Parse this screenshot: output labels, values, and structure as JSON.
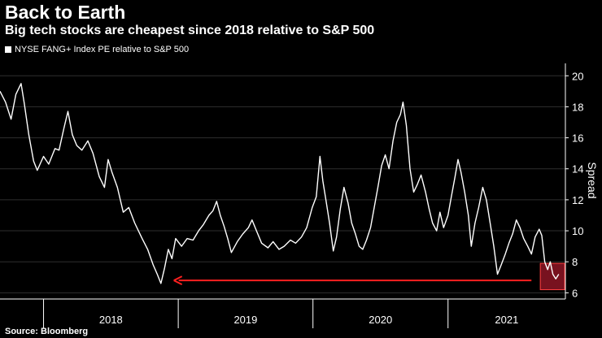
{
  "colors": {
    "background": "#000000",
    "series": "#ffffff",
    "grid": "#2e2e2e",
    "arrow": "#ff2020",
    "highlight_fill": "#a0182a",
    "highlight_stroke": "#ff4040"
  },
  "chart_data": {
    "type": "line",
    "title": "Back to Earth",
    "subtitle": "Big tech stocks are cheapest since 2018 relative to S&P 500",
    "source": "Source: Bloomberg",
    "ylabel": "Spread",
    "xlabel": "",
    "ylim": [
      5.6,
      20.8
    ],
    "y_ticks": [
      6,
      8,
      10,
      12,
      14,
      16,
      18,
      20
    ],
    "x_range": [
      "2017-09-05",
      "2021-11-15"
    ],
    "x_tick_labels": [
      "2018",
      "2019",
      "2020",
      "2021"
    ],
    "grid": "horizontal",
    "legend": "top-left",
    "series": [
      {
        "name": "NYSE FANG+ Index PE relative to S&P 500",
        "points": [
          [
            "2017-09-05",
            19.0
          ],
          [
            "2017-09-20",
            18.3
          ],
          [
            "2017-10-05",
            17.2
          ],
          [
            "2017-10-18",
            18.8
          ],
          [
            "2017-11-01",
            19.5
          ],
          [
            "2017-11-10",
            18.2
          ],
          [
            "2017-11-22",
            16.2
          ],
          [
            "2017-12-05",
            14.5
          ],
          [
            "2017-12-15",
            13.9
          ],
          [
            "2018-01-01",
            14.8
          ],
          [
            "2018-01-15",
            14.3
          ],
          [
            "2018-02-01",
            15.3
          ],
          [
            "2018-02-12",
            15.2
          ],
          [
            "2018-02-25",
            16.6
          ],
          [
            "2018-03-08",
            17.7
          ],
          [
            "2018-03-20",
            16.2
          ],
          [
            "2018-04-01",
            15.5
          ],
          [
            "2018-04-15",
            15.2
          ],
          [
            "2018-05-01",
            15.8
          ],
          [
            "2018-05-15",
            15.0
          ],
          [
            "2018-06-01",
            13.5
          ],
          [
            "2018-06-15",
            12.8
          ],
          [
            "2018-06-25",
            14.6
          ],
          [
            "2018-07-05",
            13.8
          ],
          [
            "2018-07-20",
            12.8
          ],
          [
            "2018-08-05",
            11.2
          ],
          [
            "2018-08-20",
            11.5
          ],
          [
            "2018-09-05",
            10.5
          ],
          [
            "2018-09-25",
            9.5
          ],
          [
            "2018-10-10",
            8.8
          ],
          [
            "2018-10-25",
            7.8
          ],
          [
            "2018-11-05",
            7.2
          ],
          [
            "2018-11-15",
            6.6
          ],
          [
            "2018-11-25",
            7.6
          ],
          [
            "2018-12-05",
            8.8
          ],
          [
            "2018-12-15",
            8.2
          ],
          [
            "2018-12-25",
            9.5
          ],
          [
            "2019-01-10",
            9.0
          ],
          [
            "2019-01-25",
            9.5
          ],
          [
            "2019-02-10",
            9.4
          ],
          [
            "2019-02-25",
            10.0
          ],
          [
            "2019-03-10",
            10.4
          ],
          [
            "2019-03-25",
            11.0
          ],
          [
            "2019-04-05",
            11.3
          ],
          [
            "2019-04-15",
            11.9
          ],
          [
            "2019-04-25",
            11.0
          ],
          [
            "2019-05-05",
            10.3
          ],
          [
            "2019-05-15",
            9.5
          ],
          [
            "2019-05-25",
            8.6
          ],
          [
            "2019-06-10",
            9.3
          ],
          [
            "2019-06-25",
            9.8
          ],
          [
            "2019-07-10",
            10.2
          ],
          [
            "2019-07-20",
            10.7
          ],
          [
            "2019-08-01",
            10.0
          ],
          [
            "2019-08-15",
            9.2
          ],
          [
            "2019-09-01",
            8.9
          ],
          [
            "2019-09-15",
            9.3
          ],
          [
            "2019-10-01",
            8.8
          ],
          [
            "2019-10-15",
            9.0
          ],
          [
            "2019-11-01",
            9.4
          ],
          [
            "2019-11-15",
            9.2
          ],
          [
            "2019-12-01",
            9.6
          ],
          [
            "2019-12-15",
            10.2
          ],
          [
            "2019-12-30",
            11.5
          ],
          [
            "2020-01-10",
            12.2
          ],
          [
            "2020-01-20",
            14.8
          ],
          [
            "2020-01-28",
            13.2
          ],
          [
            "2020-02-05",
            12.0
          ],
          [
            "2020-02-15",
            10.5
          ],
          [
            "2020-02-25",
            8.7
          ],
          [
            "2020-03-05",
            9.6
          ],
          [
            "2020-03-15",
            11.4
          ],
          [
            "2020-03-25",
            12.8
          ],
          [
            "2020-04-05",
            11.8
          ],
          [
            "2020-04-15",
            10.5
          ],
          [
            "2020-04-25",
            9.8
          ],
          [
            "2020-05-05",
            9.0
          ],
          [
            "2020-05-15",
            8.8
          ],
          [
            "2020-05-25",
            9.4
          ],
          [
            "2020-06-05",
            10.2
          ],
          [
            "2020-06-15",
            11.5
          ],
          [
            "2020-06-25",
            12.8
          ],
          [
            "2020-07-05",
            14.2
          ],
          [
            "2020-07-15",
            14.9
          ],
          [
            "2020-07-25",
            14.0
          ],
          [
            "2020-08-05",
            15.8
          ],
          [
            "2020-08-15",
            17.0
          ],
          [
            "2020-08-25",
            17.5
          ],
          [
            "2020-09-01",
            18.3
          ],
          [
            "2020-09-10",
            16.8
          ],
          [
            "2020-09-20",
            14.0
          ],
          [
            "2020-09-30",
            12.5
          ],
          [
            "2020-10-10",
            13.0
          ],
          [
            "2020-10-20",
            13.6
          ],
          [
            "2020-11-01",
            12.5
          ],
          [
            "2020-11-10",
            11.5
          ],
          [
            "2020-11-20",
            10.5
          ],
          [
            "2020-12-01",
            10.0
          ],
          [
            "2020-12-10",
            11.2
          ],
          [
            "2020-12-20",
            10.2
          ],
          [
            "2021-01-01",
            11.0
          ],
          [
            "2021-01-10",
            12.2
          ],
          [
            "2021-01-20",
            13.5
          ],
          [
            "2021-01-28",
            14.6
          ],
          [
            "2021-02-05",
            13.8
          ],
          [
            "2021-02-15",
            12.5
          ],
          [
            "2021-02-25",
            11.0
          ],
          [
            "2021-03-05",
            9.0
          ],
          [
            "2021-03-15",
            10.5
          ],
          [
            "2021-03-25",
            11.5
          ],
          [
            "2021-04-05",
            12.8
          ],
          [
            "2021-04-15",
            12.0
          ],
          [
            "2021-04-25",
            10.5
          ],
          [
            "2021-05-05",
            9.0
          ],
          [
            "2021-05-15",
            7.2
          ],
          [
            "2021-05-25",
            7.8
          ],
          [
            "2021-06-05",
            8.5
          ],
          [
            "2021-06-15",
            9.2
          ],
          [
            "2021-06-25",
            9.8
          ],
          [
            "2021-07-05",
            10.7
          ],
          [
            "2021-07-15",
            10.2
          ],
          [
            "2021-07-25",
            9.5
          ],
          [
            "2021-08-05",
            9.0
          ],
          [
            "2021-08-15",
            8.5
          ],
          [
            "2021-08-25",
            9.6
          ],
          [
            "2021-09-05",
            10.1
          ],
          [
            "2021-09-12",
            9.7
          ],
          [
            "2021-09-20",
            8.0
          ],
          [
            "2021-09-28",
            7.5
          ],
          [
            "2021-10-05",
            8.0
          ],
          [
            "2021-10-12",
            7.2
          ],
          [
            "2021-10-20",
            6.9
          ],
          [
            "2021-10-28",
            7.2
          ]
        ]
      }
    ],
    "annotations": [
      {
        "type": "arrow",
        "from": [
          "2021-08-15",
          6.8
        ],
        "to": [
          "2018-12-20",
          6.8
        ]
      },
      {
        "type": "highlight-box",
        "x": [
          "2021-09-08",
          "2021-11-13"
        ],
        "y": [
          6.2,
          7.9
        ]
      }
    ]
  }
}
